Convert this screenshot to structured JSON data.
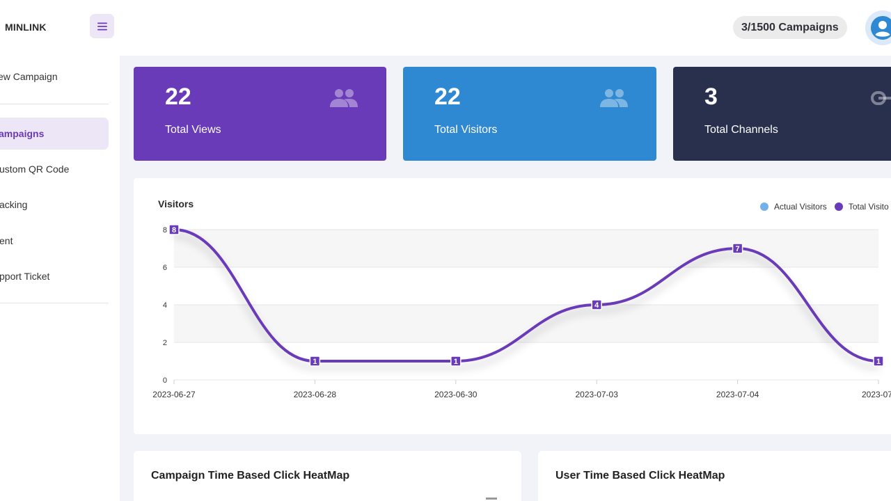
{
  "header": {
    "brand": "MINLINK",
    "quota": "3/1500 Campaigns"
  },
  "sidebar": {
    "items": [
      {
        "label": "ew Campaign",
        "active": false
      },
      {
        "label": "ampaigns",
        "active": true
      },
      {
        "label": "ustom QR Code",
        "active": false
      },
      {
        "label": "acking",
        "active": false
      },
      {
        "label": "ent",
        "active": false
      },
      {
        "label": "pport Ticket",
        "active": false
      }
    ]
  },
  "stats": [
    {
      "value": "22",
      "label": "Total Views",
      "color": "#6a3bb8",
      "icon": "users-icon"
    },
    {
      "value": "22",
      "label": "Total Visitors",
      "color": "#2e89d2",
      "icon": "users-icon"
    },
    {
      "value": "3",
      "label": "Total Channels",
      "color": "#28304e",
      "icon": "link-icon"
    }
  ],
  "chart": {
    "title": "Visitors",
    "legend": [
      {
        "name": "Actual Visitors",
        "color": "#74b1ea"
      },
      {
        "name": "Total Visito",
        "color": "#6a3bb8"
      }
    ]
  },
  "chart_data": {
    "type": "line",
    "title": "Visitors",
    "categories": [
      "2023-06-27",
      "2023-06-28",
      "2023-06-30",
      "2023-07-03",
      "2023-07-04",
      "2023-07-"
    ],
    "series": [
      {
        "name": "Total Visitors",
        "values": [
          8,
          1,
          1,
          4,
          7,
          1
        ],
        "color": "#6a3bb8"
      }
    ],
    "yticks": [
      0,
      2,
      4,
      6,
      8
    ],
    "ylim": [
      0,
      8
    ],
    "grid": true,
    "legend_position": "top-right"
  },
  "heatmaps": [
    {
      "title": "Campaign Time Based Click HeatMap"
    },
    {
      "title": "User Time Based Click HeatMap"
    }
  ]
}
